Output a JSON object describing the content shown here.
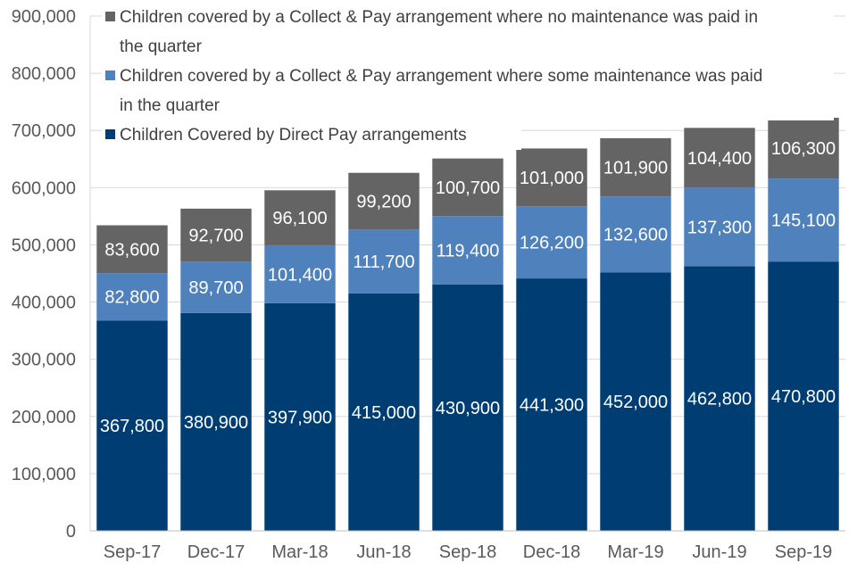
{
  "chart_data": {
    "type": "bar",
    "stacked": true,
    "categories": [
      "Sep-17",
      "Dec-17",
      "Mar-18",
      "Jun-18",
      "Sep-18",
      "Dec-18",
      "Mar-19",
      "Jun-19",
      "Sep-19"
    ],
    "series": [
      {
        "name": "Children Covered by Direct Pay arrangements",
        "color": "#003D73",
        "values": [
          367800,
          380900,
          397900,
          415000,
          430900,
          441300,
          452000,
          462800,
          470800
        ],
        "labels": [
          "367,800",
          "380,900",
          "397,900",
          "415,000",
          "430,900",
          "441,300",
          "452,000",
          "462,800",
          "470,800"
        ]
      },
      {
        "name": "Children covered by a Collect & Pay arrangement where some maintenance was paid in the quarter",
        "color": "#4F81BD",
        "values": [
          82800,
          89700,
          101400,
          111700,
          119400,
          126200,
          132600,
          137300,
          145100
        ],
        "labels": [
          "82,800",
          "89,700",
          "101,400",
          "111,700",
          "119,400",
          "126,200",
          "132,600",
          "137,300",
          "145,100"
        ]
      },
      {
        "name": "Children covered by a Collect & Pay arrangement where no maintenance was paid in the quarter",
        "color": "#646464",
        "values": [
          83600,
          92700,
          96100,
          99200,
          100700,
          101000,
          101900,
          104400,
          106300
        ],
        "labels": [
          "83,600",
          "92,700",
          "96,100",
          "99,200",
          "100,700",
          "101,000",
          "101,900",
          "104,400",
          "106,300"
        ]
      }
    ],
    "ylim": [
      0,
      900000
    ],
    "yticks": [
      0,
      100000,
      200000,
      300000,
      400000,
      500000,
      600000,
      700000,
      800000,
      900000
    ],
    "ytick_labels": [
      "0",
      "100,000",
      "200,000",
      "300,000",
      "400,000",
      "500,000",
      "600,000",
      "700,000",
      "800,000",
      "900,000"
    ],
    "grid": true,
    "legend": {
      "placement": "top-left",
      "order": [
        2,
        1,
        0
      ],
      "lines": [
        [
          "Children covered by a Collect & Pay arrangement where no maintenance was paid in",
          "the quarter"
        ],
        [
          "Children covered by a Collect & Pay arrangement where some maintenance was paid",
          "in the quarter"
        ],
        [
          "Children Covered by Direct Pay arrangements"
        ]
      ]
    },
    "title": "",
    "xlabel": "",
    "ylabel": ""
  }
}
